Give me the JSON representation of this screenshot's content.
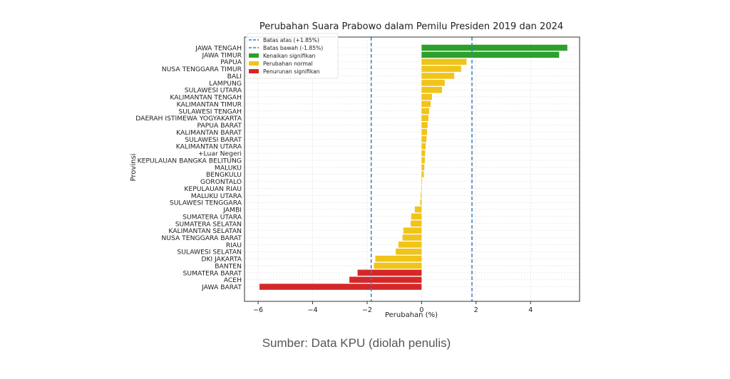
{
  "source_note": "Sumber: Data KPU (diolah penulis)",
  "chart_data": {
    "type": "bar",
    "orientation": "horizontal",
    "title": "Perubahan Suara Prabowo dalam Pemilu Presiden 2019 dan 2024",
    "xlabel": "Perubahan (%)",
    "ylabel": "Provinsi",
    "xlim": [
      -6.5,
      5.8
    ],
    "xticks": [
      -6,
      -4,
      -2,
      0,
      2,
      4
    ],
    "xtick_labels": [
      "−6",
      "−4",
      "−2",
      "0",
      "2",
      "4"
    ],
    "grid": true,
    "legend_position": "top-left",
    "thresholds": [
      {
        "label": "Batas atas (+1.85%)",
        "value": 1.85,
        "color": "#3a7fc1"
      },
      {
        "label": "Batas bawah (-1.85%)",
        "value": -1.85,
        "color": "#3a7fc1"
      }
    ],
    "legend": [
      {
        "label": "Kenaikan signifikan",
        "color": "#2ca02c"
      },
      {
        "label": "Perubahan normal",
        "color": "#f0c419"
      },
      {
        "label": "Penurunan signifikan",
        "color": "#d62728"
      }
    ],
    "colors": {
      "up": "#2ca02c",
      "normal": "#f0c419",
      "down": "#d62728",
      "grid": "#dddddd",
      "axis": "#333333"
    },
    "categories": [
      "JAWA TENGAH",
      "JAWA TIMUR",
      "PAPUA",
      "NUSA TENGGARA TIMUR",
      "BALI",
      "LAMPUNG",
      "SULAWESI UTARA",
      "KALIMANTAN TENGAH",
      "KALIMANTAN TIMUR",
      "SULAWESI TENGAH",
      "DAERAH ISTIMEWA YOGYAKARTA",
      "PAPUA BARAT",
      "KALIMANTAN BARAT",
      "SULAWESI BARAT",
      "KALIMANTAN UTARA",
      "+Luar Negeri",
      "KEPULAUAN BANGKA BELITUNG",
      "MALUKU",
      "BENGKULU",
      "GORONTALO",
      "KEPULAUAN RIAU",
      "MALUKU UTARA",
      "SULAWESI TENGGARA",
      "JAMBI",
      "SUMATERA UTARA",
      "SUMATERA SELATAN",
      "KALIMANTAN SELATAN",
      "NUSA TENGGARA BARAT",
      "RIAU",
      "SULAWESI SELATAN",
      "DKI JAKARTA",
      "BANTEN",
      "SUMATERA BARAT",
      "ACEH",
      "JAWA BARAT"
    ],
    "values": [
      5.35,
      5.05,
      1.65,
      1.45,
      1.2,
      0.85,
      0.75,
      0.38,
      0.33,
      0.28,
      0.25,
      0.22,
      0.2,
      0.18,
      0.15,
      0.13,
      0.12,
      0.1,
      0.08,
      0.02,
      0.0,
      -0.03,
      -0.05,
      -0.25,
      -0.38,
      -0.4,
      -0.67,
      -0.7,
      -0.85,
      -0.95,
      -1.7,
      -1.75,
      -2.35,
      -2.65,
      -5.95
    ],
    "categories_by_color": [
      "up",
      "up",
      "normal",
      "normal",
      "normal",
      "normal",
      "normal",
      "normal",
      "normal",
      "normal",
      "normal",
      "normal",
      "normal",
      "normal",
      "normal",
      "normal",
      "normal",
      "normal",
      "normal",
      "normal",
      "normal",
      "normal",
      "normal",
      "normal",
      "normal",
      "normal",
      "normal",
      "normal",
      "normal",
      "normal",
      "normal",
      "normal",
      "down",
      "down",
      "down"
    ]
  }
}
